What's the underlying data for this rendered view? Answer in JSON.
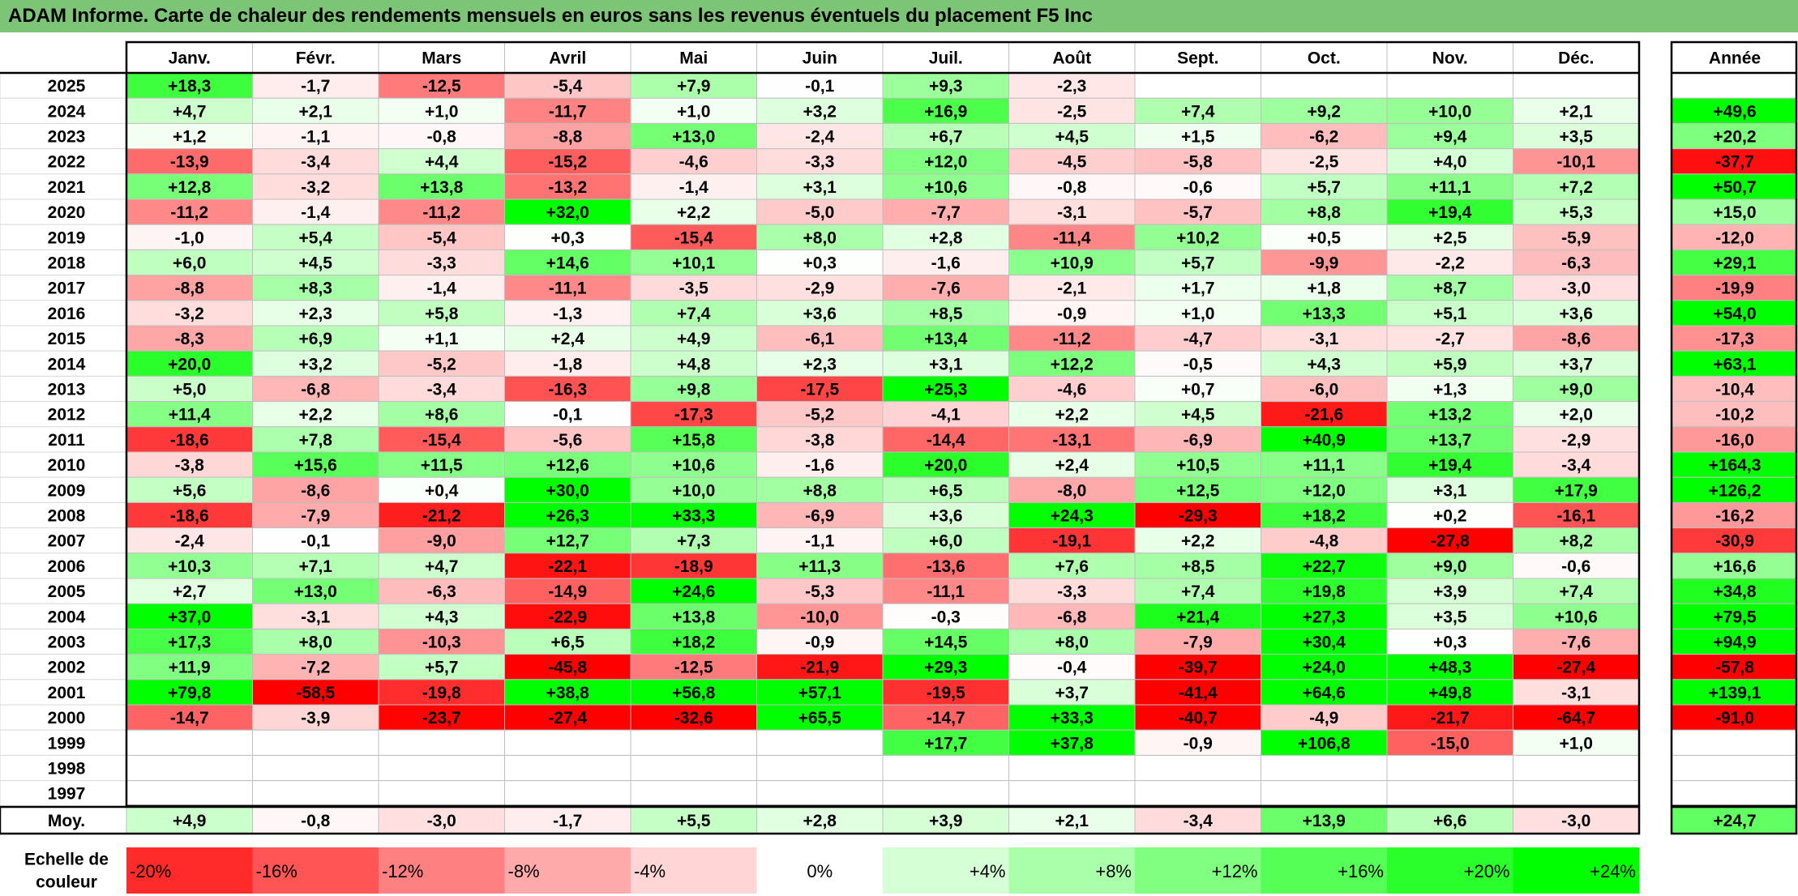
{
  "title": "ADAM Informe. Carte de chaleur des rendements mensuels en euros sans les revenus éventuels du placement F5 Inc",
  "chart_data": {
    "type": "heatmap",
    "title": "ADAM Informe. Carte de chaleur des rendements mensuels en euros sans les revenus éventuels du placement F5 Inc",
    "columns": [
      "Janv.",
      "Févr.",
      "Mars",
      "Avril",
      "Mai",
      "Juin",
      "Juil.",
      "Août",
      "Sept.",
      "Oct.",
      "Nov.",
      "Déc."
    ],
    "year_column_label": "Année",
    "rows": [
      {
        "year": "2025",
        "months": [
          "+18,3",
          "-1,7",
          "-12,5",
          "-5,4",
          "+7,9",
          "-0,1",
          "+9,3",
          "-2,3",
          "",
          "",
          "",
          ""
        ],
        "annual": ""
      },
      {
        "year": "2024",
        "months": [
          "+4,7",
          "+2,1",
          "+1,0",
          "-11,7",
          "+1,0",
          "+3,2",
          "+16,9",
          "-2,5",
          "+7,4",
          "+9,2",
          "+10,0",
          "+2,1"
        ],
        "annual": "+49,6"
      },
      {
        "year": "2023",
        "months": [
          "+1,2",
          "-1,1",
          "-0,8",
          "-8,8",
          "+13,0",
          "-2,4",
          "+6,7",
          "+4,5",
          "+1,5",
          "-6,2",
          "+9,4",
          "+3,5"
        ],
        "annual": "+20,2"
      },
      {
        "year": "2022",
        "months": [
          "-13,9",
          "-3,4",
          "+4,4",
          "-15,2",
          "-4,6",
          "-3,3",
          "+12,0",
          "-4,5",
          "-5,8",
          "-2,5",
          "+4,0",
          "-10,1"
        ],
        "annual": "-37,7"
      },
      {
        "year": "2021",
        "months": [
          "+12,8",
          "-3,2",
          "+13,8",
          "-13,2",
          "-1,4",
          "+3,1",
          "+10,6",
          "-0,8",
          "-0,6",
          "+5,7",
          "+11,1",
          "+7,2"
        ],
        "annual": "+50,7"
      },
      {
        "year": "2020",
        "months": [
          "-11,2",
          "-1,4",
          "-11,2",
          "+32,0",
          "+2,2",
          "-5,0",
          "-7,7",
          "-3,1",
          "-5,7",
          "+8,8",
          "+19,4",
          "+5,3"
        ],
        "annual": "+15,0"
      },
      {
        "year": "2019",
        "months": [
          "-1,0",
          "+5,4",
          "-5,4",
          "+0,3",
          "-15,4",
          "+8,0",
          "+2,8",
          "-11,4",
          "+10,2",
          "+0,5",
          "+2,5",
          "-5,9"
        ],
        "annual": "-12,0"
      },
      {
        "year": "2018",
        "months": [
          "+6,0",
          "+4,5",
          "-3,3",
          "+14,6",
          "+10,1",
          "+0,3",
          "-1,6",
          "+10,9",
          "+5,7",
          "-9,9",
          "-2,2",
          "-6,3"
        ],
        "annual": "+29,1"
      },
      {
        "year": "2017",
        "months": [
          "-8,8",
          "+8,3",
          "-1,4",
          "-11,1",
          "-3,5",
          "-2,9",
          "-7,6",
          "-2,1",
          "+1,7",
          "+1,8",
          "+8,7",
          "-3,0"
        ],
        "annual": "-19,9"
      },
      {
        "year": "2016",
        "months": [
          "-3,2",
          "+2,3",
          "+5,8",
          "-1,3",
          "+7,4",
          "+3,6",
          "+8,5",
          "-0,9",
          "+1,0",
          "+13,3",
          "+5,1",
          "+3,6"
        ],
        "annual": "+54,0"
      },
      {
        "year": "2015",
        "months": [
          "-8,3",
          "+6,9",
          "+1,1",
          "+2,4",
          "+4,9",
          "-6,1",
          "+13,4",
          "-11,2",
          "-4,7",
          "-3,1",
          "-2,7",
          "-8,6"
        ],
        "annual": "-17,3"
      },
      {
        "year": "2014",
        "months": [
          "+20,0",
          "+3,2",
          "-5,2",
          "-1,8",
          "+4,8",
          "+2,3",
          "+3,1",
          "+12,2",
          "-0,5",
          "+4,3",
          "+5,9",
          "+3,7"
        ],
        "annual": "+63,1"
      },
      {
        "year": "2013",
        "months": [
          "+5,0",
          "-6,8",
          "-3,4",
          "-16,3",
          "+9,8",
          "-17,5",
          "+25,3",
          "-4,6",
          "+0,7",
          "-6,0",
          "+1,3",
          "+9,0"
        ],
        "annual": "-10,4"
      },
      {
        "year": "2012",
        "months": [
          "+11,4",
          "+2,2",
          "+8,6",
          "-0,1",
          "-17,3",
          "-5,2",
          "-4,1",
          "+2,2",
          "+4,5",
          "-21,6",
          "+13,2",
          "+2,0"
        ],
        "annual": "-10,2"
      },
      {
        "year": "2011",
        "months": [
          "-18,6",
          "+7,8",
          "-15,4",
          "-5,6",
          "+15,8",
          "-3,8",
          "-14,4",
          "-13,1",
          "-6,9",
          "+40,9",
          "+13,7",
          "-2,9"
        ],
        "annual": "-16,0"
      },
      {
        "year": "2010",
        "months": [
          "-3,8",
          "+15,6",
          "+11,5",
          "+12,6",
          "+10,6",
          "-1,6",
          "+20,0",
          "+2,4",
          "+10,5",
          "+11,1",
          "+19,4",
          "-3,4"
        ],
        "annual": "+164,3"
      },
      {
        "year": "2009",
        "months": [
          "+5,6",
          "-8,6",
          "+0,4",
          "+30,0",
          "+10,0",
          "+8,8",
          "+6,5",
          "-8,0",
          "+12,5",
          "+12,0",
          "+3,1",
          "+17,9"
        ],
        "annual": "+126,2"
      },
      {
        "year": "2008",
        "months": [
          "-18,6",
          "-7,9",
          "-21,2",
          "+26,3",
          "+33,3",
          "-6,9",
          "+3,6",
          "+24,3",
          "-29,3",
          "+18,2",
          "+0,2",
          "-16,1"
        ],
        "annual": "-16,2"
      },
      {
        "year": "2007",
        "months": [
          "-2,4",
          "-0,1",
          "-9,0",
          "+12,7",
          "+7,3",
          "-1,1",
          "+6,0",
          "-19,1",
          "+2,2",
          "-4,8",
          "-27,8",
          "+8,2"
        ],
        "annual": "-30,9"
      },
      {
        "year": "2006",
        "months": [
          "+10,3",
          "+7,1",
          "+4,7",
          "-22,1",
          "-18,9",
          "+11,3",
          "-13,6",
          "+7,6",
          "+8,5",
          "+22,7",
          "+9,0",
          "-0,6"
        ],
        "annual": "+16,6"
      },
      {
        "year": "2005",
        "months": [
          "+2,7",
          "+13,0",
          "-6,3",
          "-14,9",
          "+24,6",
          "-5,3",
          "-11,1",
          "-3,3",
          "+7,4",
          "+19,8",
          "+3,9",
          "+7,4"
        ],
        "annual": "+34,8"
      },
      {
        "year": "2004",
        "months": [
          "+37,0",
          "-3,1",
          "+4,3",
          "-22,9",
          "+13,8",
          "-10,0",
          "-0,3",
          "-6,8",
          "+21,4",
          "+27,3",
          "+3,5",
          "+10,6"
        ],
        "annual": "+79,5"
      },
      {
        "year": "2003",
        "months": [
          "+17,3",
          "+8,0",
          "-10,3",
          "+6,5",
          "+18,2",
          "-0,9",
          "+14,5",
          "+8,0",
          "-7,9",
          "+30,4",
          "+0,3",
          "-7,6"
        ],
        "annual": "+94,9"
      },
      {
        "year": "2002",
        "months": [
          "+11,9",
          "-7,2",
          "+5,7",
          "-45,8",
          "-12,5",
          "-21,9",
          "+29,3",
          "-0,4",
          "-39,7",
          "+24,0",
          "+48,3",
          "-27,4"
        ],
        "annual": "-57,8"
      },
      {
        "year": "2001",
        "months": [
          "+79,8",
          "-58,5",
          "-19,8",
          "+38,8",
          "+56,8",
          "+57,1",
          "-19,5",
          "+3,7",
          "-41,4",
          "+64,6",
          "+49,8",
          "-3,1"
        ],
        "annual": "+139,1"
      },
      {
        "year": "2000",
        "months": [
          "-14,7",
          "-3,9",
          "-23,7",
          "-27,4",
          "-32,6",
          "+65,5",
          "-14,7",
          "+33,3",
          "-40,7",
          "-4,9",
          "-21,7",
          "-64,7"
        ],
        "annual": "-91,0"
      },
      {
        "year": "1999",
        "months": [
          "",
          "",
          "",
          "",
          "",
          "",
          "+17,7",
          "+37,8",
          "-0,9",
          "+106,8",
          "-15,0",
          "+1,0"
        ],
        "annual": ""
      },
      {
        "year": "1998",
        "months": [
          "",
          "",
          "",
          "",
          "",
          "",
          "",
          "",
          "",
          "",
          "",
          ""
        ],
        "annual": ""
      },
      {
        "year": "1997",
        "months": [
          "",
          "",
          "",
          "",
          "",
          "",
          "",
          "",
          "",
          "",
          "",
          ""
        ],
        "annual": ""
      }
    ],
    "average": {
      "label": "Moy.",
      "months": [
        "+4,9",
        "-0,8",
        "-3,0",
        "-1,7",
        "+5,5",
        "+2,8",
        "+3,9",
        "+2,1",
        "-3,4",
        "+13,9",
        "+6,6",
        "-3,0"
      ],
      "annual": "+24,7"
    },
    "scale": {
      "label_line1": "Echelle de",
      "label_line2": "couleur",
      "steps": [
        {
          "label": "-20%",
          "value": -20
        },
        {
          "label": "-16%",
          "value": -16
        },
        {
          "label": "-12%",
          "value": -12
        },
        {
          "label": "-8%",
          "value": -8
        },
        {
          "label": "-4%",
          "value": -4
        },
        {
          "label": "0%",
          "value": 0
        },
        {
          "label": "+4%",
          "value": 4
        },
        {
          "label": "+8%",
          "value": 8
        },
        {
          "label": "+12%",
          "value": 12
        },
        {
          "label": "+16%",
          "value": 16
        },
        {
          "label": "+20%",
          "value": 20
        },
        {
          "label": "+24%",
          "value": 24
        }
      ]
    },
    "colors": {
      "title_bar": "#7cc576",
      "negative_max": "#ff0000",
      "neutral": "#ffffff",
      "positive_max": "#00ff00",
      "grid": "#bfbfbf",
      "border": "#000000"
    }
  }
}
